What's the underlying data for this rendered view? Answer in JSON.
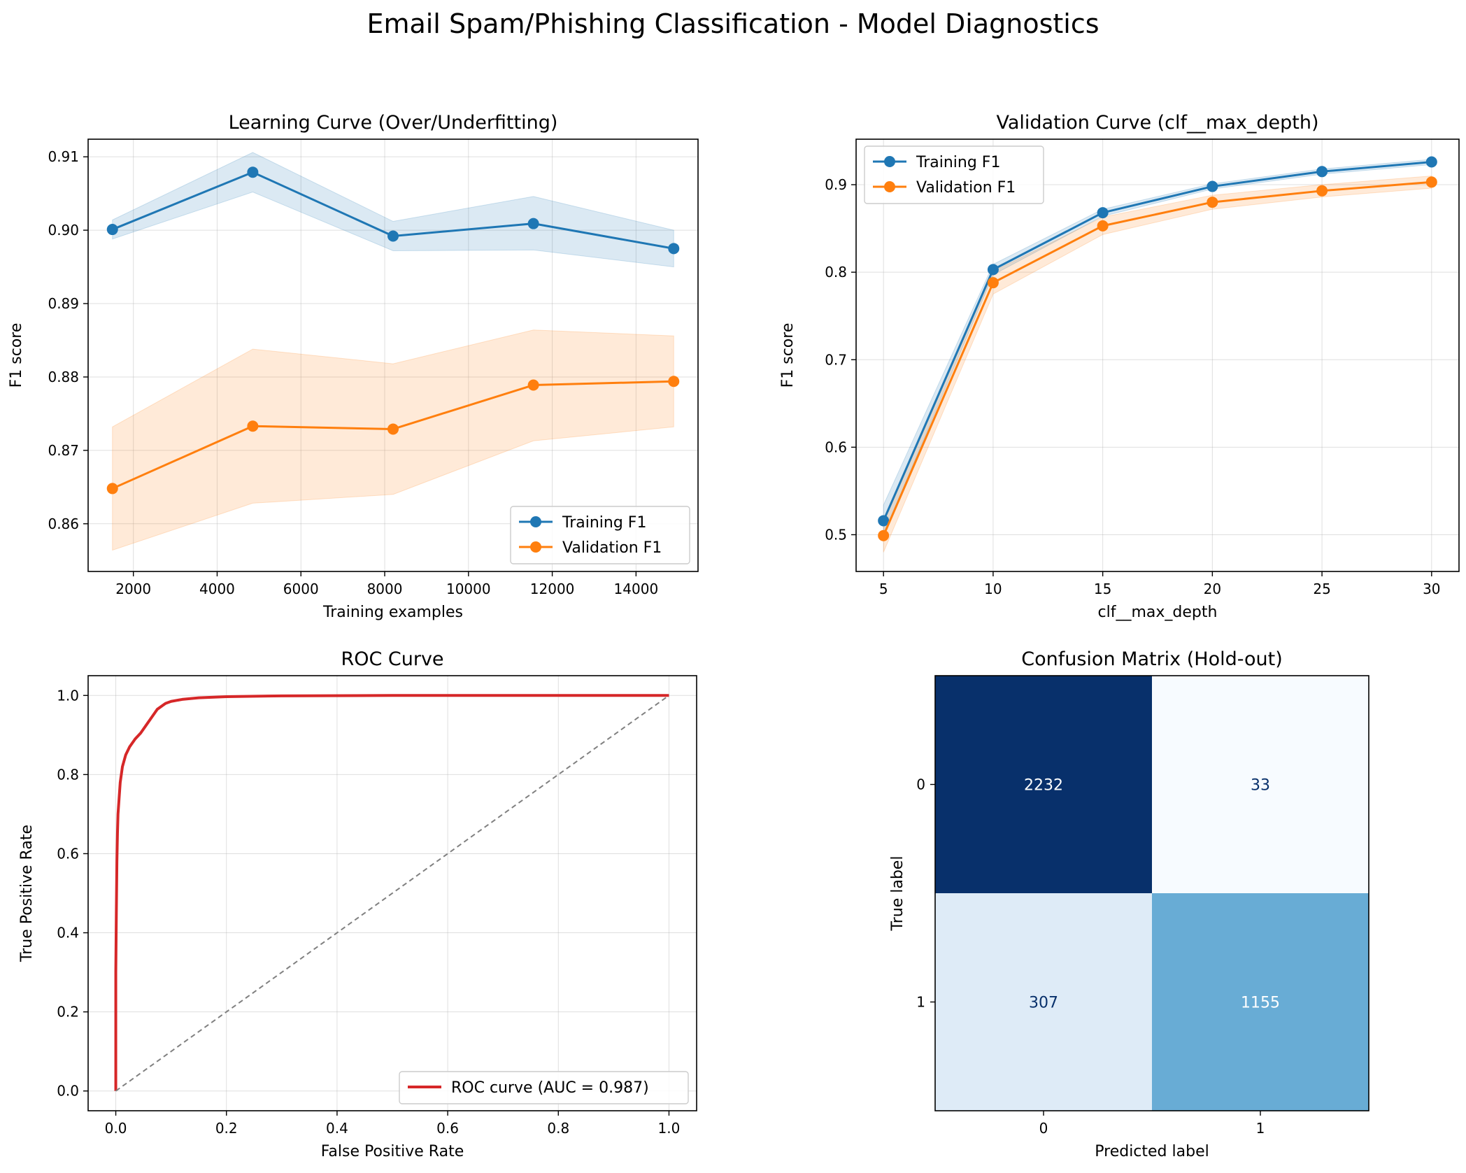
{
  "figure": {
    "suptitle": "Email Spam/Phishing Classification - Model Diagnostics"
  },
  "colors": {
    "training": "#1f77b4",
    "validation": "#ff7f0e",
    "roc": "#d62728",
    "chance_line": "#808080",
    "grid": "#b0b0b0",
    "cm_dark": "#08306b",
    "cm_light": "#f7fbff",
    "cm_mid": "#6baed6",
    "cm_pale": "#dbe9f6"
  },
  "chart_data": [
    {
      "type": "line",
      "title": "Learning Curve (Over/Underfitting)",
      "xlabel": "Training examples",
      "ylabel": "F1 score",
      "xlim": [
        920,
        15480
      ],
      "ylim": [
        0.8535,
        0.9124
      ],
      "xticks": [
        2000,
        4000,
        6000,
        8000,
        10000,
        12000,
        14000
      ],
      "xtick_labels": [
        "2000",
        "4000",
        "6000",
        "8000",
        "10000",
        "12000",
        "14000"
      ],
      "yticks": [
        0.86,
        0.87,
        0.88,
        0.89,
        0.9,
        0.91
      ],
      "ytick_labels": [
        "0.86",
        "0.87",
        "0.88",
        "0.89",
        "0.90",
        "0.91"
      ],
      "grid": true,
      "legend_position": "lower right",
      "x": [
        1500,
        4850,
        8200,
        11550,
        14900
      ],
      "series": [
        {
          "name": "Training F1",
          "values": [
            0.9001,
            0.9079,
            0.8992,
            0.9009,
            0.8975
          ],
          "band_low": [
            0.8988,
            0.9052,
            0.8972,
            0.8973,
            0.895
          ],
          "band_high": [
            0.9014,
            0.9106,
            0.9012,
            0.9046,
            0.9
          ]
        },
        {
          "name": "Validation F1",
          "values": [
            0.8648,
            0.8733,
            0.8729,
            0.8789,
            0.8794
          ],
          "band_low": [
            0.8564,
            0.8628,
            0.864,
            0.8713,
            0.8732
          ],
          "band_high": [
            0.8732,
            0.8838,
            0.8818,
            0.8864,
            0.8856
          ]
        }
      ]
    },
    {
      "type": "line",
      "title": "Validation Curve (clf__max_depth)",
      "xlabel": "clf__max_depth",
      "ylabel": "F1 score",
      "xlim": [
        3.75,
        31.25
      ],
      "ylim": [
        0.458,
        0.952
      ],
      "xticks": [
        5,
        10,
        15,
        20,
        25,
        30
      ],
      "xtick_labels": [
        "5",
        "10",
        "15",
        "20",
        "25",
        "30"
      ],
      "yticks": [
        0.5,
        0.6,
        0.7,
        0.8,
        0.9
      ],
      "ytick_labels": [
        "0.5",
        "0.6",
        "0.7",
        "0.8",
        "0.9"
      ],
      "grid": true,
      "legend_position": "upper left",
      "x": [
        5,
        10,
        15,
        20,
        25,
        30
      ],
      "series": [
        {
          "name": "Training F1",
          "values": [
            0.516,
            0.803,
            0.868,
            0.898,
            0.915,
            0.926
          ],
          "band_low": [
            0.5,
            0.797,
            0.864,
            0.895,
            0.912,
            0.923
          ],
          "band_high": [
            0.534,
            0.809,
            0.872,
            0.901,
            0.918,
            0.929
          ]
        },
        {
          "name": "Validation F1",
          "values": [
            0.499,
            0.788,
            0.853,
            0.88,
            0.893,
            0.903
          ],
          "band_low": [
            0.48,
            0.775,
            0.843,
            0.872,
            0.886,
            0.896
          ],
          "band_high": [
            0.518,
            0.801,
            0.863,
            0.888,
            0.9,
            0.91
          ]
        }
      ]
    },
    {
      "type": "line",
      "title": "ROC Curve",
      "xlabel": "False Positive Rate",
      "ylabel": "True Positive Rate",
      "xlim": [
        -0.05,
        1.05
      ],
      "ylim": [
        -0.05,
        1.05
      ],
      "xticks": [
        0.0,
        0.2,
        0.4,
        0.6,
        0.8,
        1.0
      ],
      "xtick_labels": [
        "0.0",
        "0.2",
        "0.4",
        "0.6",
        "0.8",
        "1.0"
      ],
      "yticks": [
        0.0,
        0.2,
        0.4,
        0.6,
        0.8,
        1.0
      ],
      "ytick_labels": [
        "0.0",
        "0.2",
        "0.4",
        "0.6",
        "0.8",
        "1.0"
      ],
      "grid": true,
      "legend_position": "lower right",
      "series": [
        {
          "name": "ROC curve (AUC = 0.987)",
          "x": [
            0.0,
            0.0,
            0.001,
            0.002,
            0.003,
            0.004,
            0.006,
            0.008,
            0.012,
            0.018,
            0.025,
            0.035,
            0.045,
            0.055,
            0.065,
            0.075,
            0.085,
            0.09,
            0.1,
            0.12,
            0.15,
            0.2,
            0.3,
            0.5,
            0.7,
            1.0
          ],
          "y": [
            0.0,
            0.3,
            0.45,
            0.58,
            0.65,
            0.7,
            0.74,
            0.78,
            0.82,
            0.85,
            0.87,
            0.89,
            0.905,
            0.925,
            0.945,
            0.965,
            0.975,
            0.98,
            0.985,
            0.99,
            0.994,
            0.997,
            0.999,
            1.0,
            1.0,
            1.0
          ]
        },
        {
          "name": "",
          "x": [
            0,
            1
          ],
          "y": [
            0,
            1
          ]
        }
      ]
    },
    {
      "type": "heatmap",
      "title": "Confusion Matrix (Hold-out)",
      "xlabel": "Predicted label",
      "ylabel": "True label",
      "x_categories": [
        "0",
        "1"
      ],
      "y_categories": [
        "0",
        "1"
      ],
      "values": [
        [
          2232,
          33
        ],
        [
          307,
          1155
        ]
      ],
      "cell_labels": [
        [
          "2232",
          "33"
        ],
        [
          "307",
          "1155"
        ]
      ],
      "colormap": "Blues"
    }
  ]
}
